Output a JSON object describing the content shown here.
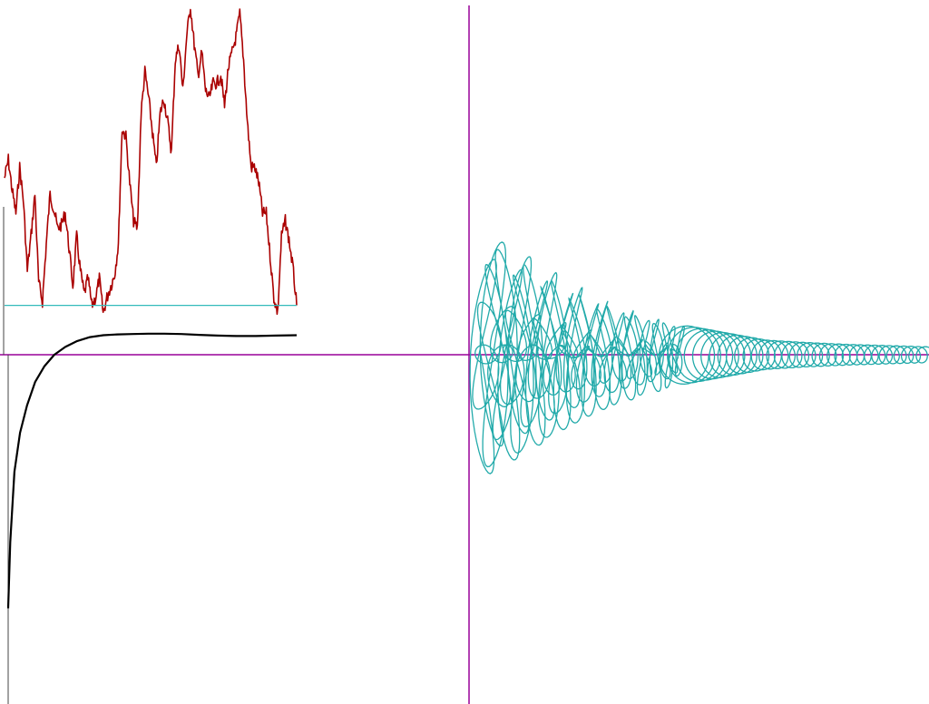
{
  "colors": {
    "background": "#ffffff",
    "axis_main": "#990099",
    "axis_secondary": "#444444",
    "noise_trace": "#aa0000",
    "baseline": "#33bbbb",
    "smooth_curve": "#000000",
    "spiral": "#22aaaa"
  },
  "chart_data": [
    {
      "type": "line",
      "series": [
        {
          "values": [
            1.76,
            2.0,
            1.6,
            1.3,
            1.9,
            1.45,
            0.55,
            1.02,
            1.55,
            0.4,
            0.15,
            0.9,
            1.55,
            1.35,
            1.1,
            1.15,
            1.3,
            0.85,
            0.35,
            1.0,
            0.55,
            0.25,
            0.45,
            0.1,
            0.2,
            0.45,
            0.0,
            0.2,
            0.35,
            0.5,
            0.9,
            2.4,
            2.3,
            1.7,
            1.2,
            1.1,
            2.6,
            3.15,
            2.8,
            2.35,
            1.9,
            2.6,
            2.8,
            2.5,
            2.1,
            3.3,
            3.5,
            2.9,
            3.6,
            4.0,
            3.5,
            3.1,
            3.4,
            2.9,
            2.8,
            3.0,
            3.0,
            3.1,
            2.7,
            3.2,
            3.4,
            3.6,
            3.9,
            3.3,
            2.5,
            1.9,
            1.9,
            1.7,
            1.3,
            1.3,
            0.75,
            0.2,
            0.0,
            1.0,
            1.2,
            0.95,
            0.6,
            0.1
          ]
        },
        {
          "values": [
            0.1,
            0.1
          ]
        },
        {
          "values": [
            -6.5,
            -4.8,
            -3.0,
            -2.0,
            -1.3,
            -0.7,
            -0.3,
            0.0,
            0.2,
            0.35,
            0.45,
            0.5,
            0.52,
            0.53,
            0.54,
            0.54,
            0.53,
            0.51,
            0.49,
            0.48,
            0.48,
            0.49,
            0.5
          ]
        }
      ]
    },
    {
      "type": "line",
      "series": [
        {
          "envelope": [
            1.0,
            0.82,
            0.62,
            0.45,
            0.33,
            0.24,
            0.18,
            0.12,
            0.1,
            0.085,
            0.075,
            0.065
          ]
        }
      ]
    }
  ]
}
